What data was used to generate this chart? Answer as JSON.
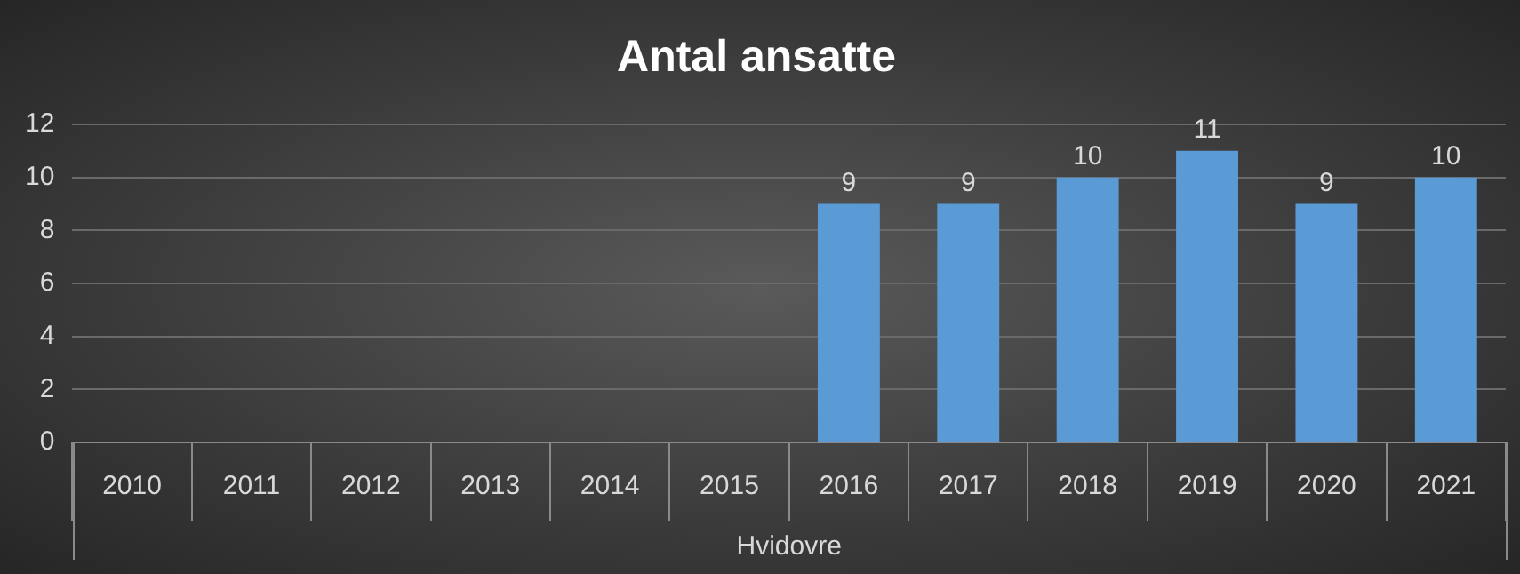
{
  "chart_data": {
    "type": "bar",
    "title": "Antal ansatte",
    "xlabel": "Hvidovre",
    "categories": [
      "2010",
      "2011",
      "2012",
      "2013",
      "2014",
      "2015",
      "2016",
      "2017",
      "2018",
      "2019",
      "2020",
      "2021"
    ],
    "values": [
      null,
      null,
      null,
      null,
      null,
      null,
      9,
      9,
      10,
      11,
      9,
      10
    ],
    "color": "#5b9bd5",
    "ylim": [
      0,
      12
    ],
    "yticks": [
      0,
      2,
      4,
      6,
      8,
      10,
      12
    ],
    "grid": "y",
    "data_labels": true,
    "legend": false
  }
}
